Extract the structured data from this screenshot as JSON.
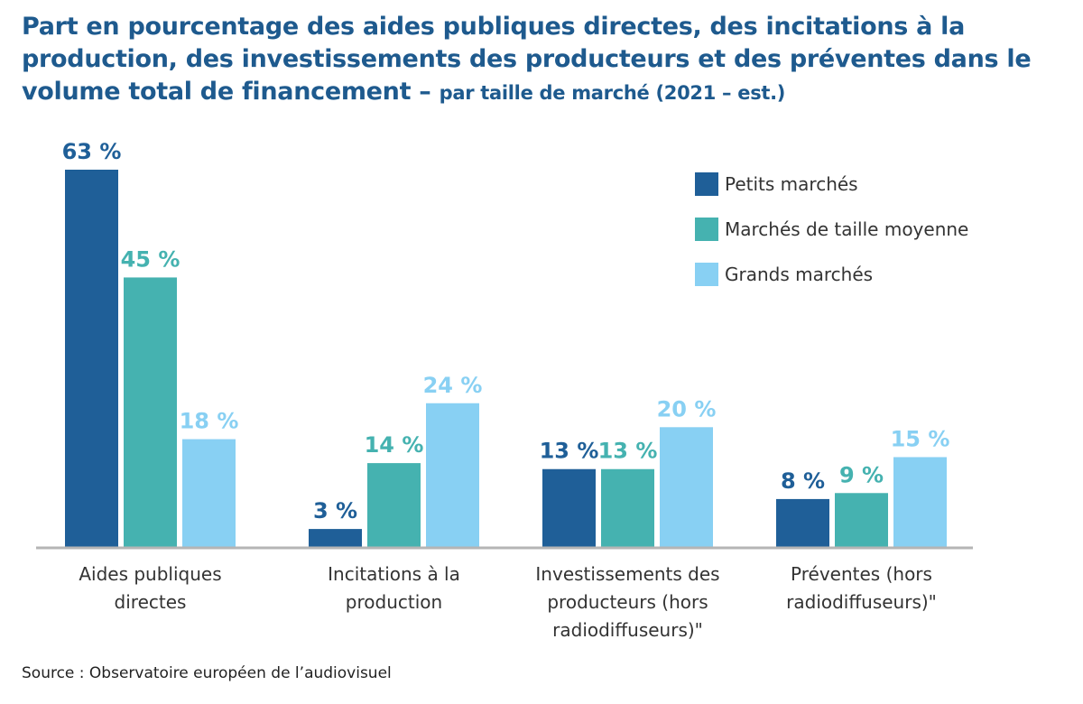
{
  "title": {
    "main": "Part en pourcentage des aides publiques directes, des incitations à la production, des investissements des producteurs et des préventes dans le volume total de financement – ",
    "subtitle": "par taille de marché (2021 – est.)"
  },
  "source": "Source : Observatoire européen de l’audiovisuel",
  "colors": {
    "small": "#1f5f98",
    "medium": "#45b2b0",
    "large": "#88d0f3",
    "axis": "#b5b5b5",
    "category_text": "#333333"
  },
  "chart_data": {
    "type": "bar",
    "title": "Part en pourcentage des aides publiques directes, des incitations à la production, des investissements des producteurs et des préventes dans le volume total de financement – par taille de marché (2021 – est.)",
    "categories": [
      [
        "Aides publiques",
        "directes"
      ],
      [
        "Incitations à la",
        "production"
      ],
      [
        "Investissements des",
        "producteurs (hors",
        "radiodiffuseurs)\""
      ],
      [
        "Préventes (hors",
        "radiodiffuseurs)\""
      ]
    ],
    "series": [
      {
        "name": "Petits marchés",
        "key": "small",
        "values": [
          63,
          3,
          13,
          8
        ],
        "labels": [
          "63 %",
          "3 %",
          "13 %",
          "8 %"
        ]
      },
      {
        "name": "Marchés de taille moyenne",
        "key": "medium",
        "values": [
          45,
          14,
          13,
          9
        ],
        "labels": [
          "45 %",
          "14 %",
          "13 %",
          "9 %"
        ]
      },
      {
        "name": "Grands marchés",
        "key": "large",
        "values": [
          18,
          24,
          20,
          15
        ],
        "labels": [
          "18 %",
          "24 %",
          "20 %",
          "15 %"
        ]
      }
    ],
    "unit": "%",
    "ylim": [
      0,
      63
    ],
    "xlabel": "",
    "ylabel": "",
    "grid": false,
    "legend_position": "top-right"
  }
}
